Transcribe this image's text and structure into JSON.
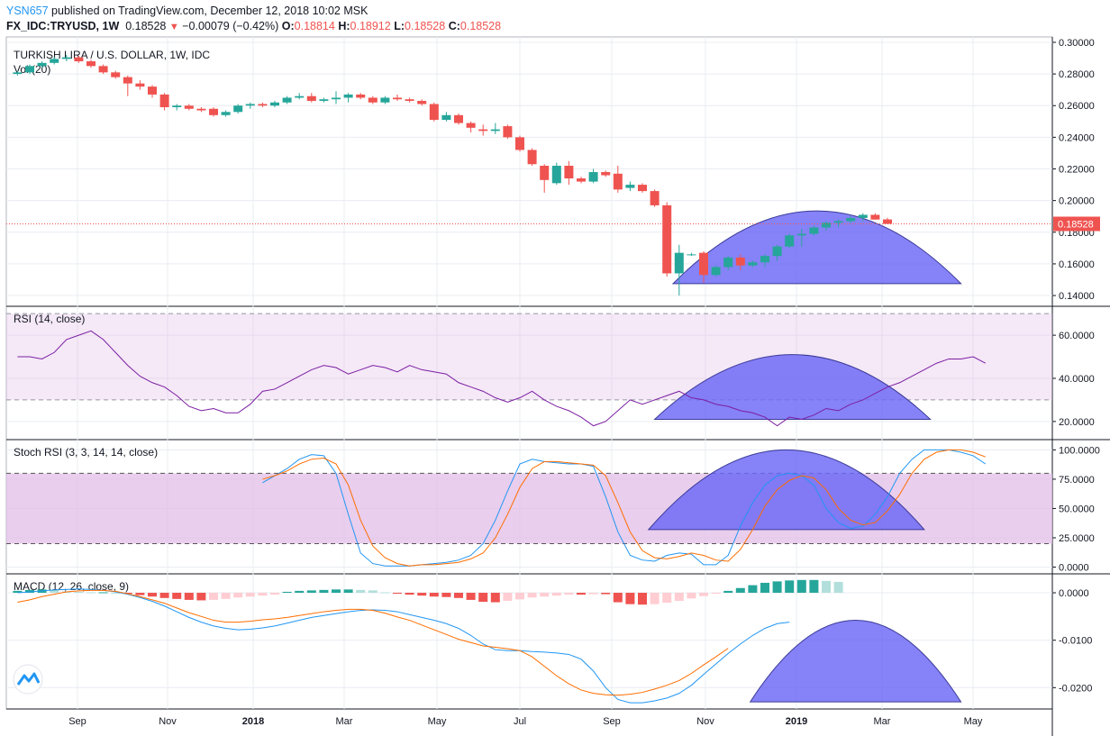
{
  "header": {
    "user": "YSN657",
    "published_text": "published on TradingView.com, December 12, 2018 10:02 MSK",
    "symbol": "FX_IDC:TRYUSD, 1W",
    "last": "0.18528",
    "change": "−0.00079 (−0.42%)",
    "open_label": "O:",
    "open": "0.18814",
    "high_label": "H:",
    "high": "0.18912",
    "low_label": "L:",
    "low": "0.18528",
    "close_label": "C:",
    "close": "0.18528"
  },
  "colors": {
    "up": "#26a69a",
    "down": "#ef5350",
    "rsi": "#7b1fa2",
    "stoch_k": "#2196f3",
    "stoch_d": "#ff6d00",
    "macd": "#2196f3",
    "signal": "#ff6d00",
    "arc_fill": "#6b67f5",
    "band": "#e1bee7"
  },
  "chart_data": [
    {
      "type": "candlestick",
      "title": "TURKISH LIRA / U.S. DOLLAR, 1W, IDC",
      "volume_label": "Vol (20)",
      "last_price_label": "0.18528",
      "y_ticks": [
        "0.14000",
        "0.16000",
        "0.18000",
        "0.20000",
        "0.22000",
        "0.24000",
        "0.26000",
        "0.28000",
        "0.30000"
      ],
      "ylim": [
        0.1332,
        0.3034
      ],
      "x_ticks": [
        "Sep",
        "Nov",
        "2018",
        "Mar",
        "May",
        "Jul",
        "Sep",
        "Nov",
        "2019",
        "Mar",
        "May"
      ],
      "candles": [
        [
          0.28,
          0.282,
          0.279,
          0.281
        ],
        [
          0.281,
          0.286,
          0.28,
          0.285
        ],
        [
          0.285,
          0.288,
          0.284,
          0.287
        ],
        [
          0.287,
          0.291,
          0.286,
          0.2895
        ],
        [
          0.2895,
          0.292,
          0.288,
          0.2905
        ],
        [
          0.2905,
          0.2915,
          0.287,
          0.288
        ],
        [
          0.288,
          0.289,
          0.284,
          0.285
        ],
        [
          0.285,
          0.286,
          0.28,
          0.281
        ],
        [
          0.281,
          0.282,
          0.277,
          0.278
        ],
        [
          0.278,
          0.279,
          0.266,
          0.274
        ],
        [
          0.274,
          0.276,
          0.27,
          0.272
        ],
        [
          0.272,
          0.273,
          0.265,
          0.267
        ],
        [
          0.267,
          0.268,
          0.257,
          0.259
        ],
        [
          0.259,
          0.261,
          0.257,
          0.26
        ],
        [
          0.26,
          0.261,
          0.257,
          0.258
        ],
        [
          0.258,
          0.259,
          0.256,
          0.257
        ],
        [
          0.258,
          0.259,
          0.253,
          0.254
        ],
        [
          0.254,
          0.257,
          0.253,
          0.256
        ],
        [
          0.256,
          0.261,
          0.255,
          0.26
        ],
        [
          0.26,
          0.262,
          0.258,
          0.261
        ],
        [
          0.261,
          0.262,
          0.259,
          0.26
        ],
        [
          0.26,
          0.263,
          0.259,
          0.262
        ],
        [
          0.262,
          0.266,
          0.261,
          0.265
        ],
        [
          0.265,
          0.268,
          0.264,
          0.266
        ],
        [
          0.266,
          0.268,
          0.262,
          0.263
        ],
        [
          0.263,
          0.265,
          0.262,
          0.264
        ],
        [
          0.264,
          0.269,
          0.261,
          0.265
        ],
        [
          0.265,
          0.268,
          0.262,
          0.267
        ],
        [
          0.267,
          0.268,
          0.264,
          0.265
        ],
        [
          0.265,
          0.266,
          0.261,
          0.262
        ],
        [
          0.262,
          0.266,
          0.261,
          0.265
        ],
        [
          0.265,
          0.267,
          0.263,
          0.264
        ],
        [
          0.264,
          0.265,
          0.262,
          0.263
        ],
        [
          0.263,
          0.264,
          0.26,
          0.261
        ],
        [
          0.261,
          0.262,
          0.25,
          0.251
        ],
        [
          0.251,
          0.256,
          0.25,
          0.254
        ],
        [
          0.254,
          0.255,
          0.248,
          0.249
        ],
        [
          0.249,
          0.25,
          0.243,
          0.246
        ],
        [
          0.245,
          0.248,
          0.241,
          0.244
        ],
        [
          0.244,
          0.249,
          0.242,
          0.245
        ],
        [
          0.247,
          0.248,
          0.239,
          0.24
        ],
        [
          0.24,
          0.241,
          0.231,
          0.232
        ],
        [
          0.232,
          0.233,
          0.222,
          0.223
        ],
        [
          0.222,
          0.223,
          0.205,
          0.213
        ],
        [
          0.211,
          0.224,
          0.21,
          0.222
        ],
        [
          0.222,
          0.225,
          0.21,
          0.214
        ],
        [
          0.214,
          0.215,
          0.211,
          0.212
        ],
        [
          0.212,
          0.22,
          0.211,
          0.218
        ],
        [
          0.218,
          0.219,
          0.215,
          0.216
        ],
        [
          0.217,
          0.222,
          0.205,
          0.207
        ],
        [
          0.208,
          0.212,
          0.206,
          0.21
        ],
        [
          0.21,
          0.211,
          0.205,
          0.206
        ],
        [
          0.206,
          0.207,
          0.196,
          0.197
        ],
        [
          0.197,
          0.199,
          0.152,
          0.154
        ],
        [
          0.154,
          0.172,
          0.14,
          0.167
        ],
        [
          0.166,
          0.167,
          0.165,
          0.166
        ],
        [
          0.167,
          0.168,
          0.148,
          0.153
        ],
        [
          0.153,
          0.159,
          0.152,
          0.158
        ],
        [
          0.158,
          0.165,
          0.156,
          0.164
        ],
        [
          0.164,
          0.166,
          0.156,
          0.159
        ],
        [
          0.159,
          0.162,
          0.158,
          0.161
        ],
        [
          0.161,
          0.166,
          0.158,
          0.165
        ],
        [
          0.165,
          0.172,
          0.162,
          0.171
        ],
        [
          0.171,
          0.179,
          0.17,
          0.178
        ],
        [
          0.178,
          0.182,
          0.171,
          0.179
        ],
        [
          0.179,
          0.184,
          0.178,
          0.183
        ],
        [
          0.183,
          0.187,
          0.181,
          0.186
        ],
        [
          0.186,
          0.188,
          0.183,
          0.187
        ],
        [
          0.187,
          0.19,
          0.186,
          0.189
        ],
        [
          0.189,
          0.192,
          0.187,
          0.191
        ],
        [
          0.191,
          0.192,
          0.188,
          0.188
        ],
        [
          0.1881,
          0.1891,
          0.1853,
          0.1853
        ]
      ],
      "arc": {
        "x0": 53.5,
        "x1": 77.0,
        "peak": 0.1935,
        "base": 0.1475
      }
    },
    {
      "type": "line",
      "title": "RSI (14, close)",
      "y_ticks": [
        "20.0000",
        "40.0000",
        "60.0000"
      ],
      "ylim": [
        12,
        73
      ],
      "band": [
        30,
        70
      ],
      "values": [
        50,
        50,
        49,
        52,
        58,
        60,
        62,
        58,
        52,
        46,
        41,
        38,
        36,
        32,
        27,
        25,
        26,
        24,
        24,
        28,
        34,
        35,
        38,
        41,
        44,
        46,
        45,
        42,
        44,
        46,
        45,
        43,
        46,
        44,
        43,
        42,
        38,
        36,
        34,
        31,
        29,
        31,
        34,
        30,
        27,
        25,
        22,
        18,
        20,
        25,
        30,
        28,
        30,
        32,
        34,
        31,
        30,
        28,
        27,
        25,
        24,
        22,
        18,
        22,
        21,
        23,
        26,
        25,
        28,
        30,
        33,
        36,
        38,
        41,
        44,
        47,
        49,
        49,
        50,
        47
      ],
      "arc": {
        "x0": 52.0,
        "x1": 74.5,
        "peak": 51,
        "base": 21
      },
      "x_offset": 0
    },
    {
      "type": "line",
      "title": "Stoch RSI (3, 3, 14, 14, close)",
      "y_ticks": [
        "0.0000",
        "25.0000",
        "50.0000",
        "75.0000",
        "100.0000"
      ],
      "ylim": [
        -5,
        108
      ],
      "band": [
        20,
        80
      ],
      "series": [
        {
          "values": [
            72,
            78,
            84,
            92,
            96,
            95,
            80,
            45,
            12,
            3,
            1,
            1,
            1,
            2,
            3,
            4,
            6,
            10,
            20,
            40,
            65,
            88,
            92,
            90,
            89,
            88,
            88,
            86,
            60,
            30,
            10,
            6,
            5,
            10,
            12,
            11,
            2,
            2,
            10,
            35,
            55,
            70,
            78,
            80,
            78,
            70,
            50,
            38,
            33,
            35,
            45,
            60,
            80,
            92,
            100,
            100,
            100,
            98,
            95,
            88
          ]
        },
        {
          "values": [
            75,
            78,
            82,
            88,
            92,
            93,
            88,
            70,
            40,
            18,
            8,
            3,
            1,
            2,
            2,
            3,
            4,
            7,
            12,
            25,
            45,
            68,
            84,
            90,
            90,
            89,
            88,
            87,
            78,
            55,
            30,
            14,
            8,
            7,
            9,
            12,
            10,
            6,
            5,
            15,
            32,
            52,
            66,
            74,
            78,
            76,
            66,
            50,
            40,
            36,
            38,
            48,
            62,
            80,
            92,
            98,
            100,
            100,
            98,
            94
          ]
        }
      ],
      "arc": {
        "x0": 51.5,
        "x1": 74.0,
        "peak": 100,
        "base": 32
      },
      "x_offset": 20
    },
    {
      "type": "bar+line",
      "title": "MACD (12, 26, close, 9)",
      "y_ticks": [
        "-0.0200",
        "-0.0100",
        "0.0000"
      ],
      "ylim": [
        -0.0245,
        0.0038
      ],
      "histogram": [
        0.0004,
        0.0006,
        0.0007,
        0.0006,
        0.0003,
        0.0002,
        0.0001,
        0.0001,
        0.0,
        -0.0002,
        -0.0005,
        -0.0008,
        -0.0011,
        -0.0013,
        -0.0015,
        -0.0016,
        -0.0015,
        -0.0013,
        -0.001,
        -0.0008,
        -0.0006,
        -0.0004,
        0.0002,
        0.0004,
        0.0005,
        0.0006,
        0.0007,
        0.0007,
        0.0006,
        0.0005,
        0.0001,
        -0.0002,
        -0.0004,
        -0.0006,
        -0.0008,
        -0.0009,
        -0.0011,
        -0.0015,
        -0.0019,
        -0.002,
        -0.0017,
        -0.0014,
        -0.001,
        -0.0008,
        -0.0006,
        -0.0004,
        -0.0004,
        -0.0003,
        -0.0003,
        -0.002,
        -0.0024,
        -0.0025,
        -0.0024,
        -0.0021,
        -0.0017,
        -0.0012,
        -0.0007,
        -0.0002,
        0.0004,
        0.001,
        0.0016,
        0.0021,
        0.0024,
        0.0026,
        0.0027,
        0.0027,
        0.0025,
        0.0023
      ],
      "macd": [
        0.0,
        0.0002,
        0.0004,
        0.0006,
        0.0007,
        0.0008,
        0.0007,
        0.0005,
        0.0002,
        -0.0003,
        -0.001,
        -0.0018,
        -0.0028,
        -0.004,
        -0.0052,
        -0.0062,
        -0.007,
        -0.0075,
        -0.0078,
        -0.0077,
        -0.0074,
        -0.007,
        -0.0064,
        -0.0058,
        -0.0052,
        -0.0048,
        -0.0044,
        -0.004,
        -0.0037,
        -0.0036,
        -0.0037,
        -0.004,
        -0.0046,
        -0.0052,
        -0.0058,
        -0.0065,
        -0.0075,
        -0.009,
        -0.0108,
        -0.012,
        -0.0122,
        -0.0122,
        -0.0124,
        -0.0125,
        -0.0127,
        -0.013,
        -0.014,
        -0.0165,
        -0.02,
        -0.0225,
        -0.0232,
        -0.0232,
        -0.0228,
        -0.0222,
        -0.0212,
        -0.0195,
        -0.0172,
        -0.015,
        -0.0128,
        -0.0108,
        -0.009,
        -0.0075,
        -0.0065,
        -0.0062
      ],
      "signal": [
        -0.002,
        -0.0015,
        -0.0008,
        -0.0003,
        0.0002,
        0.0004,
        0.0005,
        0.0005,
        0.0003,
        -0.0002,
        -0.0008,
        -0.0015,
        -0.0022,
        -0.0032,
        -0.0042,
        -0.005,
        -0.0058,
        -0.0062,
        -0.0062,
        -0.006,
        -0.0057,
        -0.0055,
        -0.0052,
        -0.0048,
        -0.0044,
        -0.004,
        -0.0037,
        -0.0035,
        -0.0035,
        -0.0037,
        -0.0043,
        -0.0051,
        -0.0058,
        -0.0068,
        -0.0078,
        -0.0088,
        -0.0098,
        -0.0105,
        -0.0112,
        -0.0115,
        -0.0118,
        -0.0122,
        -0.0135,
        -0.0155,
        -0.0175,
        -0.0192,
        -0.0205,
        -0.0212,
        -0.0215,
        -0.0216,
        -0.0214,
        -0.021,
        -0.0203,
        -0.0195,
        -0.0185,
        -0.017,
        -0.0152,
        -0.0135,
        -0.0117
      ],
      "arc": {
        "x0": 59.8,
        "x1": 77.0,
        "peak": -0.0058,
        "base": -0.023
      },
      "x_offset": 0
    }
  ]
}
